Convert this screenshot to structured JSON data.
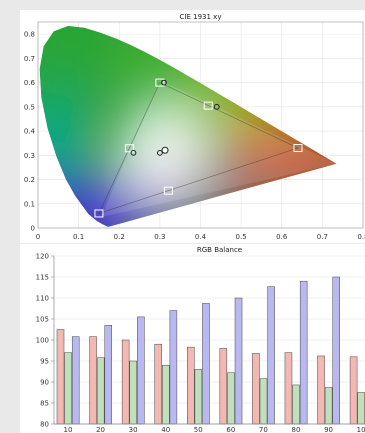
{
  "chart_data": [
    {
      "type": "scatter",
      "title": "CIE 1931 xy",
      "xlim": [
        0,
        0.8
      ],
      "ylim": [
        0,
        0.85
      ],
      "x_ticks": [
        "0",
        "0.1",
        "0.2",
        "0.3",
        "0.4",
        "0.5",
        "0.6",
        "0.7",
        "0.8"
      ],
      "y_ticks": [
        "0",
        "0.1",
        "0.2",
        "0.3",
        "0.4",
        "0.5",
        "0.6",
        "0.7",
        "0.8"
      ],
      "grid": true,
      "spectral_locus": [
        [
          0.1741,
          0.005
        ],
        [
          0.1738,
          0.0049
        ],
        [
          0.1736,
          0.005
        ],
        [
          0.1714,
          0.0051
        ],
        [
          0.1689,
          0.0069
        ],
        [
          0.1644,
          0.0109
        ],
        [
          0.1566,
          0.0177
        ],
        [
          0.144,
          0.0297
        ],
        [
          0.1241,
          0.0578
        ],
        [
          0.0913,
          0.1327
        ],
        [
          0.0687,
          0.2007
        ],
        [
          0.0454,
          0.295
        ],
        [
          0.0235,
          0.4127
        ],
        [
          0.0082,
          0.5384
        ],
        [
          0.0039,
          0.6548
        ],
        [
          0.0139,
          0.7502
        ],
        [
          0.0389,
          0.812
        ],
        [
          0.0743,
          0.8338
        ],
        [
          0.1142,
          0.8262
        ],
        [
          0.1547,
          0.8059
        ],
        [
          0.1929,
          0.7816
        ],
        [
          0.2296,
          0.7543
        ],
        [
          0.2658,
          0.7243
        ],
        [
          0.3016,
          0.6923
        ],
        [
          0.3373,
          0.6589
        ],
        [
          0.3731,
          0.6245
        ],
        [
          0.4087,
          0.5896
        ],
        [
          0.4441,
          0.5547
        ],
        [
          0.4788,
          0.5202
        ],
        [
          0.5125,
          0.4866
        ],
        [
          0.5448,
          0.4544
        ],
        [
          0.5752,
          0.4242
        ],
        [
          0.6029,
          0.3965
        ],
        [
          0.627,
          0.3725
        ],
        [
          0.6482,
          0.3514
        ],
        [
          0.6658,
          0.334
        ],
        [
          0.6801,
          0.3197
        ],
        [
          0.6915,
          0.3083
        ],
        [
          0.7006,
          0.2993
        ],
        [
          0.714,
          0.2859
        ],
        [
          0.7347,
          0.2653
        ]
      ],
      "gamut_target": [
        [
          0.64,
          0.33
        ],
        [
          0.3,
          0.6
        ],
        [
          0.15,
          0.06
        ]
      ],
      "gamut_measured": [
        [
          0.735,
          0.265
        ],
        [
          0.3,
          0.61
        ],
        [
          0.155,
          0.045
        ]
      ],
      "white_target": [
        0.3127,
        0.329
      ],
      "target_points": [
        {
          "name": "R",
          "x": 0.64,
          "y": 0.33
        },
        {
          "name": "G",
          "x": 0.3,
          "y": 0.6
        },
        {
          "name": "B",
          "x": 0.15,
          "y": 0.06
        },
        {
          "name": "C",
          "x": 0.225,
          "y": 0.329
        },
        {
          "name": "M",
          "x": 0.321,
          "y": 0.154
        },
        {
          "name": "Y",
          "x": 0.419,
          "y": 0.505
        }
      ],
      "measured_points": [
        {
          "x": 0.31,
          "y": 0.6
        },
        {
          "x": 0.44,
          "y": 0.5
        },
        {
          "x": 0.235,
          "y": 0.31
        },
        {
          "x": 0.3,
          "y": 0.31
        }
      ]
    },
    {
      "type": "bar",
      "title": "RGB Balance",
      "categories": [
        "10",
        "20",
        "30",
        "40",
        "50",
        "60",
        "70",
        "80",
        "90",
        "10"
      ],
      "ylim": [
        80,
        120
      ],
      "y_ticks": [
        "80",
        "85",
        "90",
        "95",
        "100",
        "105",
        "110",
        "115",
        "120"
      ],
      "grid": true,
      "series": [
        {
          "color": "#f4b8b3",
          "values": [
            102.5,
            100.8,
            100.0,
            99.0,
            98.3,
            98.0,
            96.8,
            97.0,
            96.2,
            96.0
          ]
        },
        {
          "color": "#bfe0ba",
          "values": [
            97.0,
            95.8,
            95.0,
            94.0,
            93.0,
            92.2,
            90.8,
            89.3,
            88.7,
            87.5
          ]
        },
        {
          "color": "#b9b8f0",
          "values": [
            100.8,
            103.5,
            105.5,
            107.0,
            108.7,
            110.0,
            112.7,
            114.0,
            115.0,
            121.0
          ]
        }
      ]
    }
  ]
}
